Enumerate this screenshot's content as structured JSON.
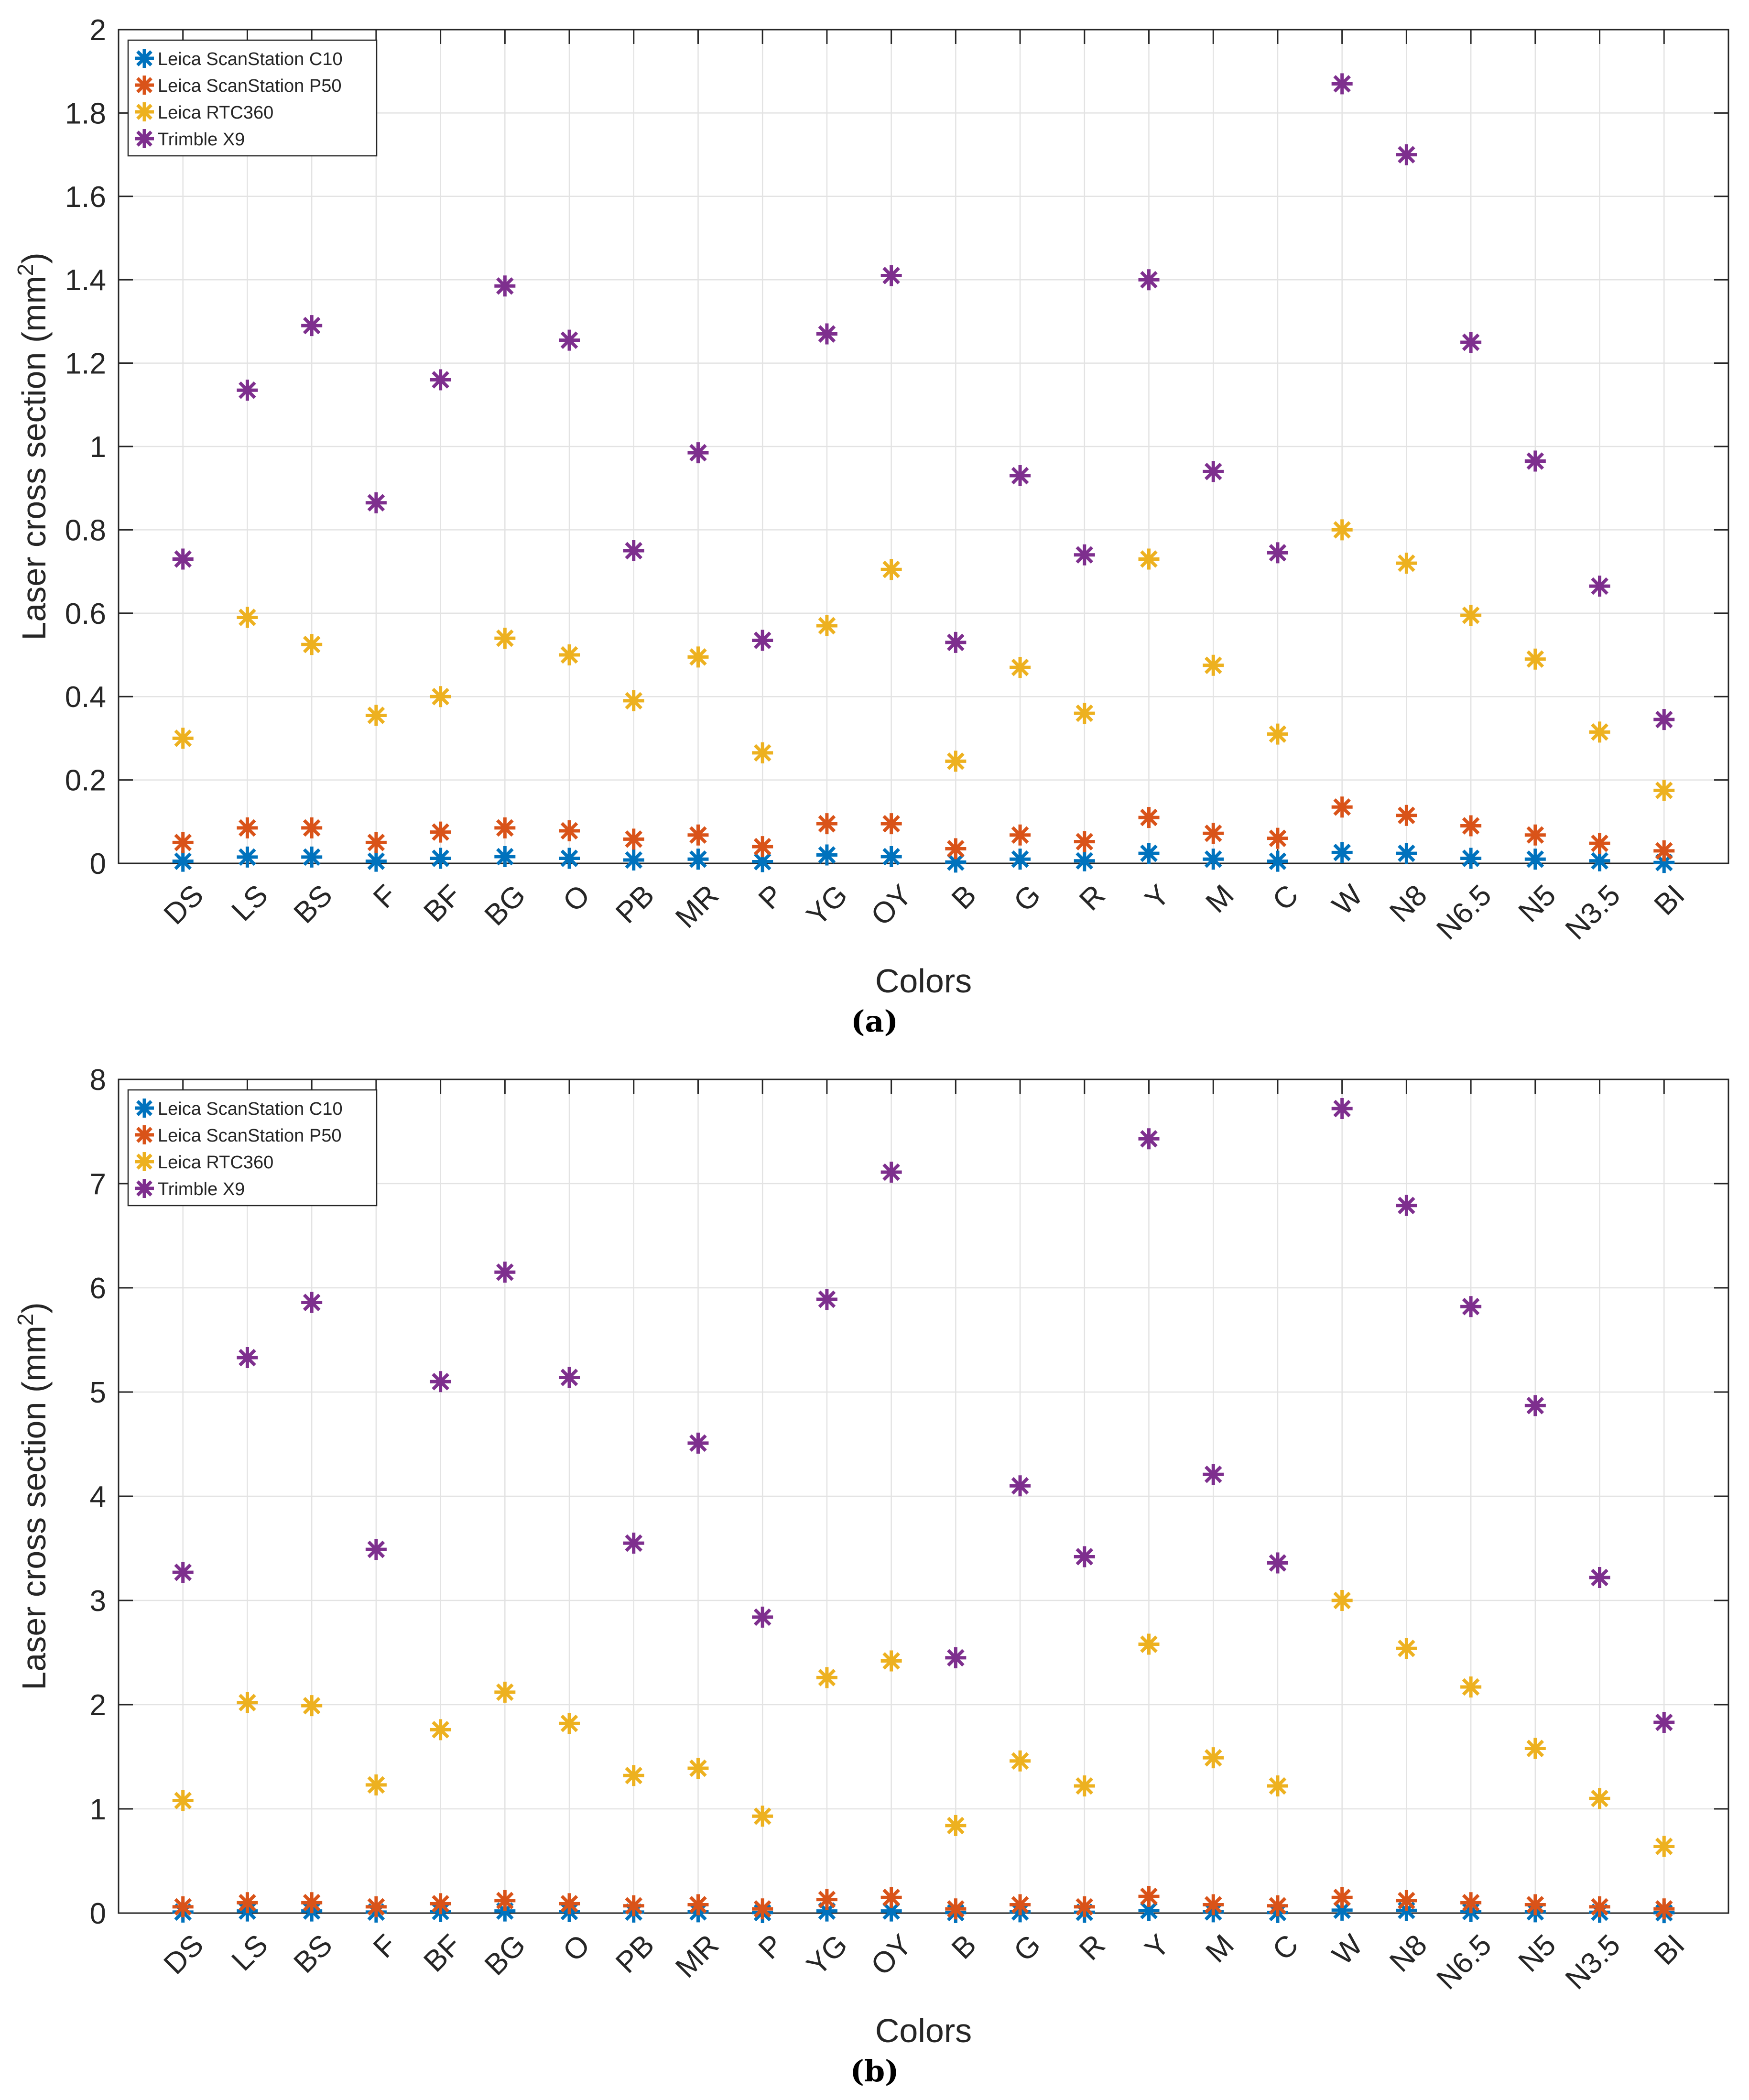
{
  "chart_data": [
    {
      "id": "a",
      "type": "scatter",
      "marker": "asterisk",
      "caption": "(a)",
      "xlabel": "Colors",
      "ylabel": "Laser cross section (mm",
      "ylabel_sup": "2",
      "ylabel_tail": ")",
      "ylim": [
        0,
        2
      ],
      "yticks": [
        0,
        0.2,
        0.4,
        0.6,
        0.8,
        1,
        1.2,
        1.4,
        1.6,
        1.8,
        2
      ],
      "ytick_labels": [
        "0",
        "0.2",
        "0.4",
        "0.6",
        "0.8",
        "1",
        "1.2",
        "1.4",
        "1.6",
        "1.8",
        "2"
      ],
      "grid": true,
      "legend_position": "top-left",
      "categories": [
        "DS",
        "LS",
        "BS",
        "F",
        "BF",
        "BG",
        "O",
        "PB",
        "MR",
        "P",
        "YG",
        "OY",
        "B",
        "G",
        "R",
        "Y",
        "M",
        "C",
        "W",
        "N8",
        "N6.5",
        "N5",
        "N3.5",
        "BI"
      ],
      "series": [
        {
          "name": "Leica ScanStation C10",
          "color": "#0072BD",
          "values": [
            0.005,
            0.015,
            0.015,
            0.005,
            0.012,
            0.016,
            0.012,
            0.008,
            0.01,
            0.004,
            0.02,
            0.016,
            0.003,
            0.01,
            0.006,
            0.024,
            0.01,
            0.005,
            0.026,
            0.024,
            0.012,
            0.01,
            0.006,
            0.002
          ]
        },
        {
          "name": "Leica ScanStation P50",
          "color": "#D95319",
          "values": [
            0.05,
            0.085,
            0.085,
            0.05,
            0.075,
            0.085,
            0.078,
            0.058,
            0.068,
            0.04,
            0.095,
            0.095,
            0.035,
            0.068,
            0.052,
            0.11,
            0.072,
            0.06,
            0.135,
            0.115,
            0.09,
            0.068,
            0.048,
            0.03
          ]
        },
        {
          "name": "Leica RTC360",
          "color": "#EDB120",
          "values": [
            0.3,
            0.59,
            0.525,
            0.355,
            0.4,
            0.54,
            0.5,
            0.39,
            0.495,
            0.265,
            0.57,
            0.705,
            0.245,
            0.47,
            0.36,
            0.73,
            0.475,
            0.31,
            0.8,
            0.72,
            0.595,
            0.49,
            0.315,
            0.175
          ]
        },
        {
          "name": "Trimble X9",
          "color": "#7E2F8E",
          "values": [
            0.73,
            1.135,
            1.29,
            0.865,
            1.16,
            1.385,
            1.255,
            0.75,
            0.985,
            0.535,
            1.27,
            1.41,
            0.53,
            0.93,
            0.74,
            1.4,
            0.94,
            0.745,
            1.87,
            1.7,
            1.25,
            0.965,
            0.665,
            0.345
          ]
        }
      ]
    },
    {
      "id": "b",
      "type": "scatter",
      "marker": "asterisk",
      "caption": "(b)",
      "xlabel": "Colors",
      "ylabel": "Laser cross section (mm",
      "ylabel_sup": "2",
      "ylabel_tail": ")",
      "ylim": [
        0,
        8
      ],
      "yticks": [
        0,
        1,
        2,
        3,
        4,
        5,
        6,
        7,
        8
      ],
      "ytick_labels": [
        "0",
        "1",
        "2",
        "3",
        "4",
        "5",
        "6",
        "7",
        "8"
      ],
      "grid": true,
      "legend_position": "top-left",
      "categories": [
        "DS",
        "LS",
        "BS",
        "F",
        "BF",
        "BG",
        "O",
        "PB",
        "MR",
        "P",
        "YG",
        "OY",
        "B",
        "G",
        "R",
        "Y",
        "M",
        "C",
        "W",
        "N8",
        "N6.5",
        "N5",
        "N3.5",
        "BI"
      ],
      "series": [
        {
          "name": "Leica ScanStation C10",
          "color": "#0072BD",
          "values": [
            0.01,
            0.02,
            0.02,
            0.01,
            0.015,
            0.02,
            0.015,
            0.01,
            0.012,
            0.005,
            0.02,
            0.02,
            0.005,
            0.012,
            0.008,
            0.025,
            0.012,
            0.006,
            0.028,
            0.026,
            0.015,
            0.012,
            0.008,
            0.004
          ]
        },
        {
          "name": "Leica ScanStation P50",
          "color": "#D95319",
          "values": [
            0.06,
            0.1,
            0.1,
            0.06,
            0.09,
            0.12,
            0.09,
            0.07,
            0.08,
            0.04,
            0.13,
            0.15,
            0.04,
            0.08,
            0.06,
            0.16,
            0.08,
            0.07,
            0.15,
            0.12,
            0.1,
            0.08,
            0.06,
            0.04
          ]
        },
        {
          "name": "Leica RTC360",
          "color": "#EDB120",
          "values": [
            1.08,
            2.02,
            1.99,
            1.23,
            1.76,
            2.12,
            1.82,
            1.32,
            1.39,
            0.93,
            2.26,
            2.42,
            0.84,
            1.46,
            1.22,
            2.58,
            1.49,
            1.22,
            3.0,
            2.54,
            2.17,
            1.58,
            1.1,
            0.64
          ]
        },
        {
          "name": "Trimble X9",
          "color": "#7E2F8E",
          "values": [
            3.27,
            5.33,
            5.86,
            3.49,
            5.1,
            6.15,
            5.14,
            3.55,
            4.51,
            2.84,
            5.89,
            7.11,
            2.45,
            4.1,
            3.42,
            7.43,
            4.21,
            3.36,
            7.72,
            6.79,
            5.82,
            4.87,
            3.22,
            1.83
          ]
        }
      ]
    }
  ]
}
